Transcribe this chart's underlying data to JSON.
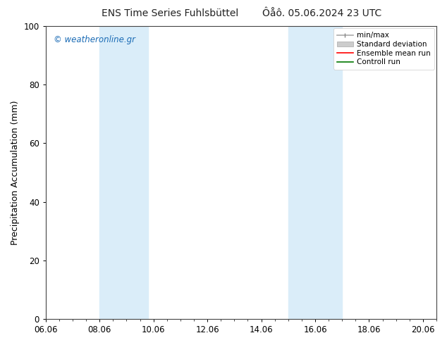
{
  "title_left": "ENS Time Series Fuhlsbüttel",
  "title_right": "Ôåô. 05.06.2024 23 UTC",
  "ylabel": "Precipitation Accumulation (mm)",
  "ylim": [
    0,
    100
  ],
  "yticks": [
    0,
    20,
    40,
    60,
    80,
    100
  ],
  "xtick_labels": [
    "06.06",
    "08.06",
    "10.06",
    "12.06",
    "14.06",
    "16.06",
    "18.06",
    "20.06"
  ],
  "xtick_positions": [
    0,
    2,
    4,
    6,
    8,
    10,
    12,
    14
  ],
  "xlim": [
    0,
    14
  ],
  "shaded_regions": [
    {
      "xstart": 2.0,
      "xend": 3.8,
      "color": "#daedf9"
    },
    {
      "xstart": 9.0,
      "xend": 11.0,
      "color": "#daedf9"
    }
  ],
  "watermark": "© weatheronline.gr",
  "watermark_color": "#1a6bb5",
  "legend_items": [
    {
      "label": "min/max",
      "color": "#aaaaaa"
    },
    {
      "label": "Standard deviation",
      "color": "#cccccc"
    },
    {
      "label": "Ensemble mean run",
      "color": "#ff0000"
    },
    {
      "label": "Controll run",
      "color": "#007700"
    }
  ],
  "background_color": "#ffffff",
  "title_fontsize": 10,
  "axis_label_fontsize": 9,
  "tick_fontsize": 8.5,
  "watermark_fontsize": 8.5,
  "legend_fontsize": 7.5
}
